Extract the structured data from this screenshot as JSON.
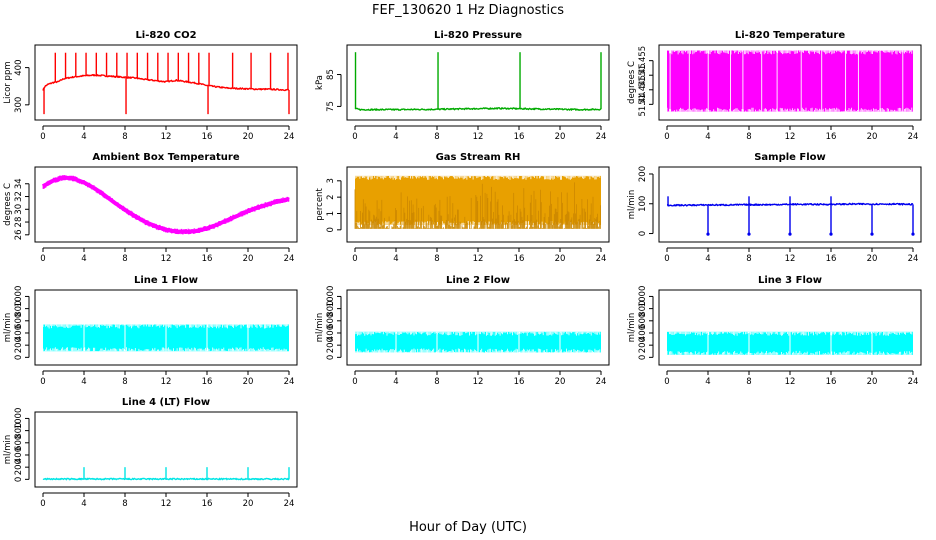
{
  "figure": {
    "title": "FEF_130620  1 Hz Diagnostics",
    "xlabel": "Hour of Day (UTC)"
  },
  "chart_data": [
    {
      "type": "line",
      "title": "Li-820 CO2",
      "xlabel": "",
      "ylabel": "Licor ppm",
      "color": "#ff0000",
      "xlim": [
        0,
        24
      ],
      "ylim": [
        270,
        450
      ],
      "xticks": [
        0,
        4,
        8,
        12,
        16,
        20,
        24
      ],
      "yticks": [
        300,
        400
      ],
      "series": [
        {
          "x": [
            0,
            0.2,
            0.5,
            1,
            1.5,
            2,
            3,
            4,
            5,
            6,
            7,
            8,
            9,
            10,
            11,
            12,
            13,
            14,
            15,
            16,
            17,
            18,
            19,
            20,
            21,
            22,
            23,
            24
          ],
          "y": [
            340,
            350,
            355,
            360,
            362,
            370,
            375,
            378,
            380,
            378,
            376,
            374,
            372,
            368,
            365,
            362,
            366,
            362,
            358,
            352,
            348,
            345,
            344,
            343,
            342,
            342,
            341,
            340
          ]
        }
      ],
      "annotations": [
        {
          "kind": "spikes",
          "x": [
            1.2,
            2.2,
            3.2,
            4.2,
            5.2,
            6.2,
            7.2,
            8.2,
            9.2,
            10.2,
            11.2,
            12.2,
            13.2,
            14.2,
            15.2,
            16.2,
            18.5,
            20.3,
            22.2,
            23.9
          ],
          "to": 440
        },
        {
          "kind": "dips",
          "x": [
            0.1,
            8.1,
            16.1,
            24
          ],
          "to": 275
        }
      ]
    },
    {
      "type": "line",
      "title": "Li-820 Pressure",
      "xlabel": "",
      "ylabel": "kPa",
      "color": "#00aa00",
      "xlim": [
        0,
        24
      ],
      "ylim": [
        72,
        93
      ],
      "xticks": [
        0,
        4,
        8,
        12,
        16,
        20,
        24
      ],
      "yticks": [
        75,
        85
      ],
      "series": [
        {
          "x": [
            0,
            0.5,
            4,
            8,
            10,
            12,
            14,
            16,
            18,
            20,
            22,
            24
          ],
          "y": [
            74.3,
            74.0,
            74.0,
            74.1,
            74.2,
            74.3,
            74.4,
            74.3,
            74.2,
            74.1,
            74.0,
            74.1
          ]
        }
      ],
      "annotations": [
        {
          "kind": "spikes",
          "x": [
            0.05,
            8.1,
            16.1,
            24
          ],
          "to": 92
        }
      ]
    },
    {
      "type": "line",
      "title": "Li-820 Temperature",
      "xlabel": "",
      "ylabel": "degrees C",
      "color": "#ff00ff",
      "xlim": [
        0,
        24
      ],
      "ylim": [
        51.436,
        51.459
      ],
      "xticks": [
        0,
        4,
        8,
        12,
        16,
        20,
        24
      ],
      "yticks": [
        51.44,
        51.445,
        51.45,
        51.455
      ],
      "series": [
        {
          "x": [
            0,
            24
          ],
          "y": [
            51.4375,
            51.4585
          ]
        }
      ],
      "annotations": [
        {
          "kind": "filled-band",
          "x": [
            0,
            24
          ],
          "range": [
            51.4375,
            51.4585
          ]
        }
      ]
    },
    {
      "type": "line",
      "title": "Ambient Box Temperature",
      "xlabel": "",
      "ylabel": "degrees C",
      "color": "#ff00ff",
      "xlim": [
        0,
        24
      ],
      "ylim": [
        25.5,
        36
      ],
      "xticks": [
        0,
        4,
        8,
        12,
        16,
        20,
        24
      ],
      "yticks": [
        26,
        28,
        30,
        32,
        34
      ],
      "series": [
        {
          "x": [
            0,
            1,
            2,
            3,
            4,
            5,
            6,
            7,
            8,
            9,
            10,
            11,
            12,
            13,
            14,
            15,
            16,
            17,
            18,
            19,
            20,
            21,
            22,
            23,
            24
          ],
          "y": [
            33.6,
            34.5,
            35.0,
            34.8,
            34.2,
            33.3,
            32.2,
            31.0,
            29.9,
            28.9,
            28.0,
            27.3,
            26.8,
            26.5,
            26.5,
            26.6,
            27.0,
            27.6,
            28.3,
            29.0,
            29.7,
            30.3,
            30.8,
            31.3,
            31.6
          ]
        }
      ],
      "annotations": [
        {
          "kind": "noise-band",
          "width": 0.9
        }
      ]
    },
    {
      "type": "scatter",
      "title": "Gas Stream RH",
      "xlabel": "",
      "ylabel": "percent",
      "color": "#e8a000",
      "xlim": [
        0,
        24
      ],
      "ylim": [
        -0.5,
        3.6
      ],
      "xticks": [
        0,
        4,
        8,
        12,
        16,
        20,
        24
      ],
      "yticks": [
        0,
        1,
        2,
        3
      ],
      "series": [
        {
          "x": [
            0,
            24
          ],
          "y": [
            3.3,
            3.2
          ]
        }
      ],
      "annotations": [
        {
          "kind": "filled-band",
          "x": [
            0,
            24
          ],
          "range": [
            0.3,
            3.3
          ]
        }
      ]
    },
    {
      "type": "line",
      "title": "Sample Flow",
      "xlabel": "",
      "ylabel": "ml/min",
      "color": "#0000ee",
      "xlim": [
        0,
        24
      ],
      "ylim": [
        -15,
        210
      ],
      "xticks": [
        0,
        4,
        8,
        12,
        16,
        20,
        24
      ],
      "yticks": [
        0,
        100,
        200
      ],
      "series": [
        {
          "x": [
            0,
            2,
            4,
            6,
            8,
            10,
            12,
            14,
            16,
            18,
            20,
            22,
            24
          ],
          "y": [
            95,
            95,
            96,
            96,
            97,
            97,
            98,
            98,
            98,
            99,
            99,
            99,
            98
          ]
        }
      ],
      "annotations": [
        {
          "kind": "dips",
          "x": [
            4,
            8,
            12,
            16,
            20,
            24
          ],
          "to": -2
        },
        {
          "kind": "spikes",
          "x": [
            0.1,
            8,
            12,
            16
          ],
          "to": 125
        }
      ]
    },
    {
      "type": "line",
      "title": "Line 1 Flow",
      "xlabel": "",
      "ylabel": "ml/min",
      "color": "#00ffff",
      "xlim": [
        0,
        24
      ],
      "ylim": [
        -60,
        1040
      ],
      "xticks": [
        0,
        4,
        8,
        12,
        16,
        20,
        24
      ],
      "yticks": [
        0,
        200,
        400,
        600,
        800,
        1000
      ],
      "series": [
        {
          "x": [
            0,
            24
          ],
          "y": [
            320,
            320
          ]
        }
      ],
      "annotations": [
        {
          "kind": "filled-band",
          "x": [
            0,
            24
          ],
          "range": [
            100,
            540
          ]
        }
      ]
    },
    {
      "type": "line",
      "title": "Line 2 Flow",
      "xlabel": "",
      "ylabel": "ml/min",
      "color": "#00ffff",
      "xlim": [
        0,
        24
      ],
      "ylim": [
        -60,
        1040
      ],
      "xticks": [
        0,
        4,
        8,
        12,
        16,
        20,
        24
      ],
      "yticks": [
        0,
        200,
        400,
        600,
        800,
        1000
      ],
      "series": [
        {
          "x": [
            0,
            24
          ],
          "y": [
            260,
            260
          ]
        }
      ],
      "annotations": [
        {
          "kind": "filled-band",
          "x": [
            0,
            24
          ],
          "range": [
            80,
            420
          ]
        }
      ]
    },
    {
      "type": "line",
      "title": "Line 3 Flow",
      "xlabel": "",
      "ylabel": "ml/min",
      "color": "#00ffff",
      "xlim": [
        0,
        24
      ],
      "ylim": [
        -60,
        1040
      ],
      "xticks": [
        0,
        4,
        8,
        12,
        16,
        20,
        24
      ],
      "yticks": [
        0,
        200,
        400,
        600,
        800,
        1000
      ],
      "series": [
        {
          "x": [
            0,
            24
          ],
          "y": [
            240,
            240
          ]
        }
      ],
      "annotations": [
        {
          "kind": "filled-band",
          "x": [
            0,
            24
          ],
          "range": [
            40,
            420
          ]
        }
      ]
    },
    {
      "type": "line",
      "title": "Line 4 (LT) Flow",
      "xlabel": "",
      "ylabel": "ml/min",
      "color": "#00e5e5",
      "xlim": [
        0,
        24
      ],
      "ylim": [
        -60,
        1040
      ],
      "xticks": [
        0,
        4,
        8,
        12,
        16,
        20,
        24
      ],
      "yticks": [
        0,
        200,
        400,
        600,
        800,
        1000
      ],
      "series": [
        {
          "x": [
            0,
            24
          ],
          "y": [
            5,
            5
          ]
        }
      ],
      "annotations": [
        {
          "kind": "spikes",
          "x": [
            4,
            8,
            12,
            16,
            20,
            24
          ],
          "to": 200
        }
      ]
    }
  ]
}
